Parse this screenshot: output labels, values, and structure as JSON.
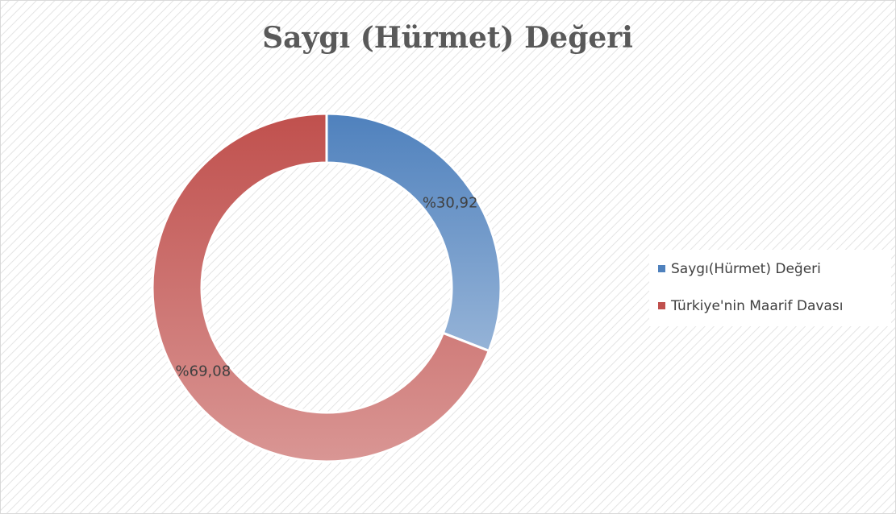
{
  "chart_data": {
    "type": "pie",
    "title": "Saygı (Hürmet) Değeri",
    "categories": [
      "Saygı(Hürmet) Değeri",
      "Türkiye'nin Maarif Davası"
    ],
    "values": [
      30.92,
      69.08
    ],
    "value_labels": [
      "%30,92",
      "%69,08"
    ],
    "colors": [
      "#4f81bd",
      "#c0504d"
    ],
    "legend": "right"
  }
}
